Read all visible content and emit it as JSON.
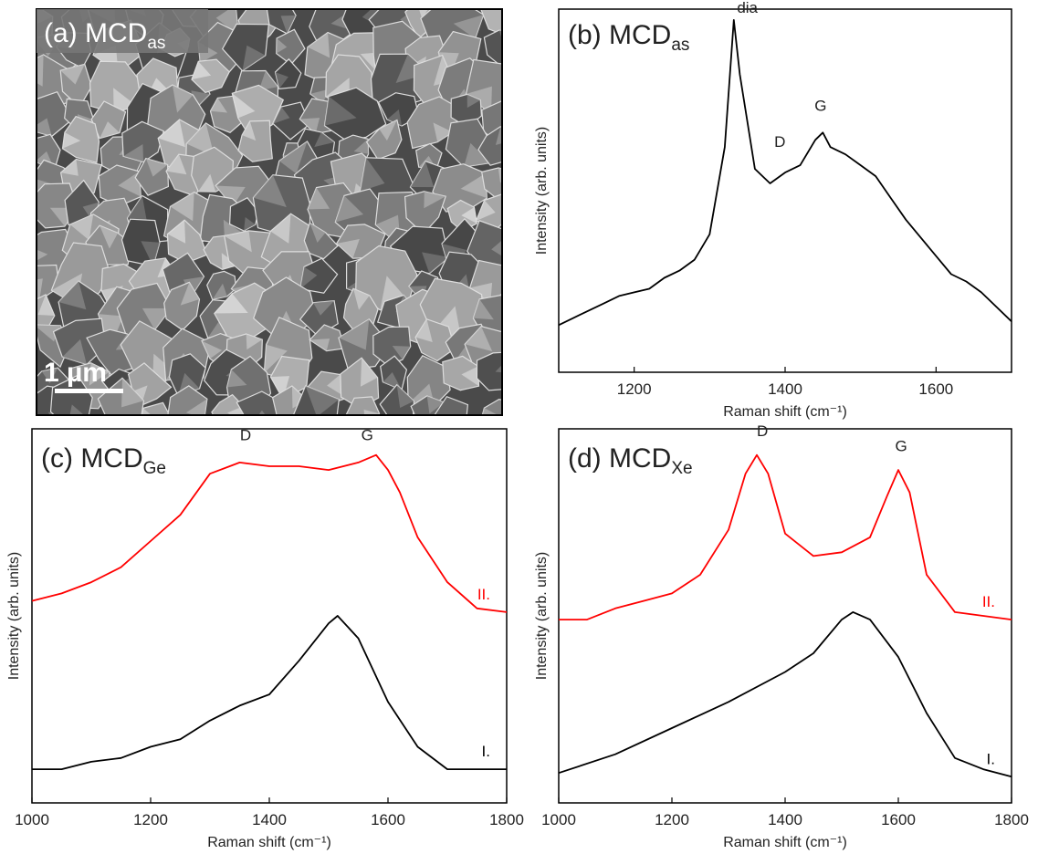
{
  "image": {
    "title": "(a) MCD",
    "title_subscript": "as",
    "scale_bar": "1 µm"
  },
  "chart_data": [
    {
      "type": "line",
      "title": "(b) MCD",
      "title_subscript": "as",
      "x_label": "Raman shift (cm⁻¹)",
      "y_label": "Intensity (arb. units)",
      "xlim": [
        1100,
        1700
      ],
      "xticks": [
        1200,
        1400,
        1600
      ],
      "ylim": [
        0,
        100
      ],
      "x": [
        1100,
        1120,
        1140,
        1160,
        1180,
        1200,
        1220,
        1240,
        1260,
        1280,
        1300,
        1320,
        1332,
        1340,
        1360,
        1380,
        1400,
        1420,
        1440,
        1450,
        1460,
        1480,
        1500,
        1520,
        1540,
        1560,
        1580,
        1600,
        1620,
        1640,
        1660,
        1680,
        1700
      ],
      "values": [
        13,
        15,
        17,
        19,
        21,
        22,
        23,
        26,
        28,
        31,
        38,
        62,
        97,
        82,
        56,
        52,
        55,
        57,
        64,
        66,
        62,
        60,
        57,
        54,
        48,
        42,
        37,
        32,
        27,
        25,
        22,
        18,
        14
      ],
      "color": "#000000",
      "annotations": [
        {
          "text": "dia",
          "x": 1350,
          "y": 99
        },
        {
          "text": "D",
          "x": 1393,
          "y": 62
        },
        {
          "text": "G",
          "x": 1447,
          "y": 72
        }
      ]
    },
    {
      "type": "line",
      "title": "(c) MCD",
      "title_subscript": "Ge",
      "x_label": "Raman shift (cm⁻¹)",
      "y_label": "Intensity (arb. units)",
      "xlim": [
        1000,
        1800
      ],
      "xticks": [
        1000,
        1200,
        1400,
        1600,
        1800
      ],
      "ylim": [
        0,
        100
      ],
      "series": [
        {
          "name": "II.",
          "color": "#ff0000",
          "x": [
            1000,
            1050,
            1100,
            1150,
            1200,
            1250,
            1300,
            1350,
            1400,
            1450,
            1500,
            1550,
            1580,
            1600,
            1620,
            1650,
            1700,
            1750,
            1800
          ],
          "values": [
            54,
            56,
            59,
            63,
            70,
            77,
            88,
            91,
            90,
            90,
            89,
            91,
            93,
            89,
            83,
            71,
            59,
            52,
            51
          ]
        },
        {
          "name": "I.",
          "color": "#000000",
          "x": [
            1000,
            1050,
            1100,
            1150,
            1200,
            1250,
            1300,
            1350,
            1400,
            1450,
            1500,
            1515,
            1550,
            1600,
            1650,
            1700,
            1750,
            1800
          ],
          "values": [
            9,
            9,
            11,
            12,
            15,
            17,
            22,
            26,
            29,
            38,
            48,
            50,
            44,
            27,
            15,
            9,
            9,
            9
          ]
        }
      ],
      "annotations": [
        {
          "text": "D",
          "x": 1360,
          "y": 97
        },
        {
          "text": "G",
          "x": 1565,
          "y": 97
        }
      ]
    },
    {
      "type": "line",
      "title": "(d) MCD",
      "title_subscript": "Xe",
      "x_label": "Raman shift (cm⁻¹)",
      "y_label": "Intensity (arb. units)",
      "xlim": [
        1000,
        1800
      ],
      "xticks": [
        1000,
        1200,
        1400,
        1600,
        1800
      ],
      "ylim": [
        0,
        100
      ],
      "series": [
        {
          "name": "II.",
          "color": "#ff0000",
          "x": [
            1000,
            1050,
            1100,
            1150,
            1200,
            1250,
            1300,
            1330,
            1350,
            1370,
            1400,
            1450,
            1500,
            1550,
            1580,
            1600,
            1620,
            1650,
            1700,
            1750,
            1800
          ],
          "values": [
            49,
            49,
            52,
            54,
            56,
            61,
            73,
            88,
            93,
            88,
            72,
            66,
            67,
            71,
            82,
            89,
            83,
            61,
            51,
            50,
            49
          ]
        },
        {
          "name": "I.",
          "color": "#000000",
          "x": [
            1000,
            1100,
            1200,
            1300,
            1400,
            1450,
            1500,
            1520,
            1550,
            1600,
            1650,
            1700,
            1750,
            1800
          ],
          "values": [
            8,
            13,
            20,
            27,
            35,
            40,
            49,
            51,
            49,
            39,
            24,
            12,
            9,
            7
          ]
        }
      ],
      "annotations": [
        {
          "text": "D",
          "x": 1360,
          "y": 98
        },
        {
          "text": "G",
          "x": 1605,
          "y": 94
        }
      ]
    }
  ]
}
